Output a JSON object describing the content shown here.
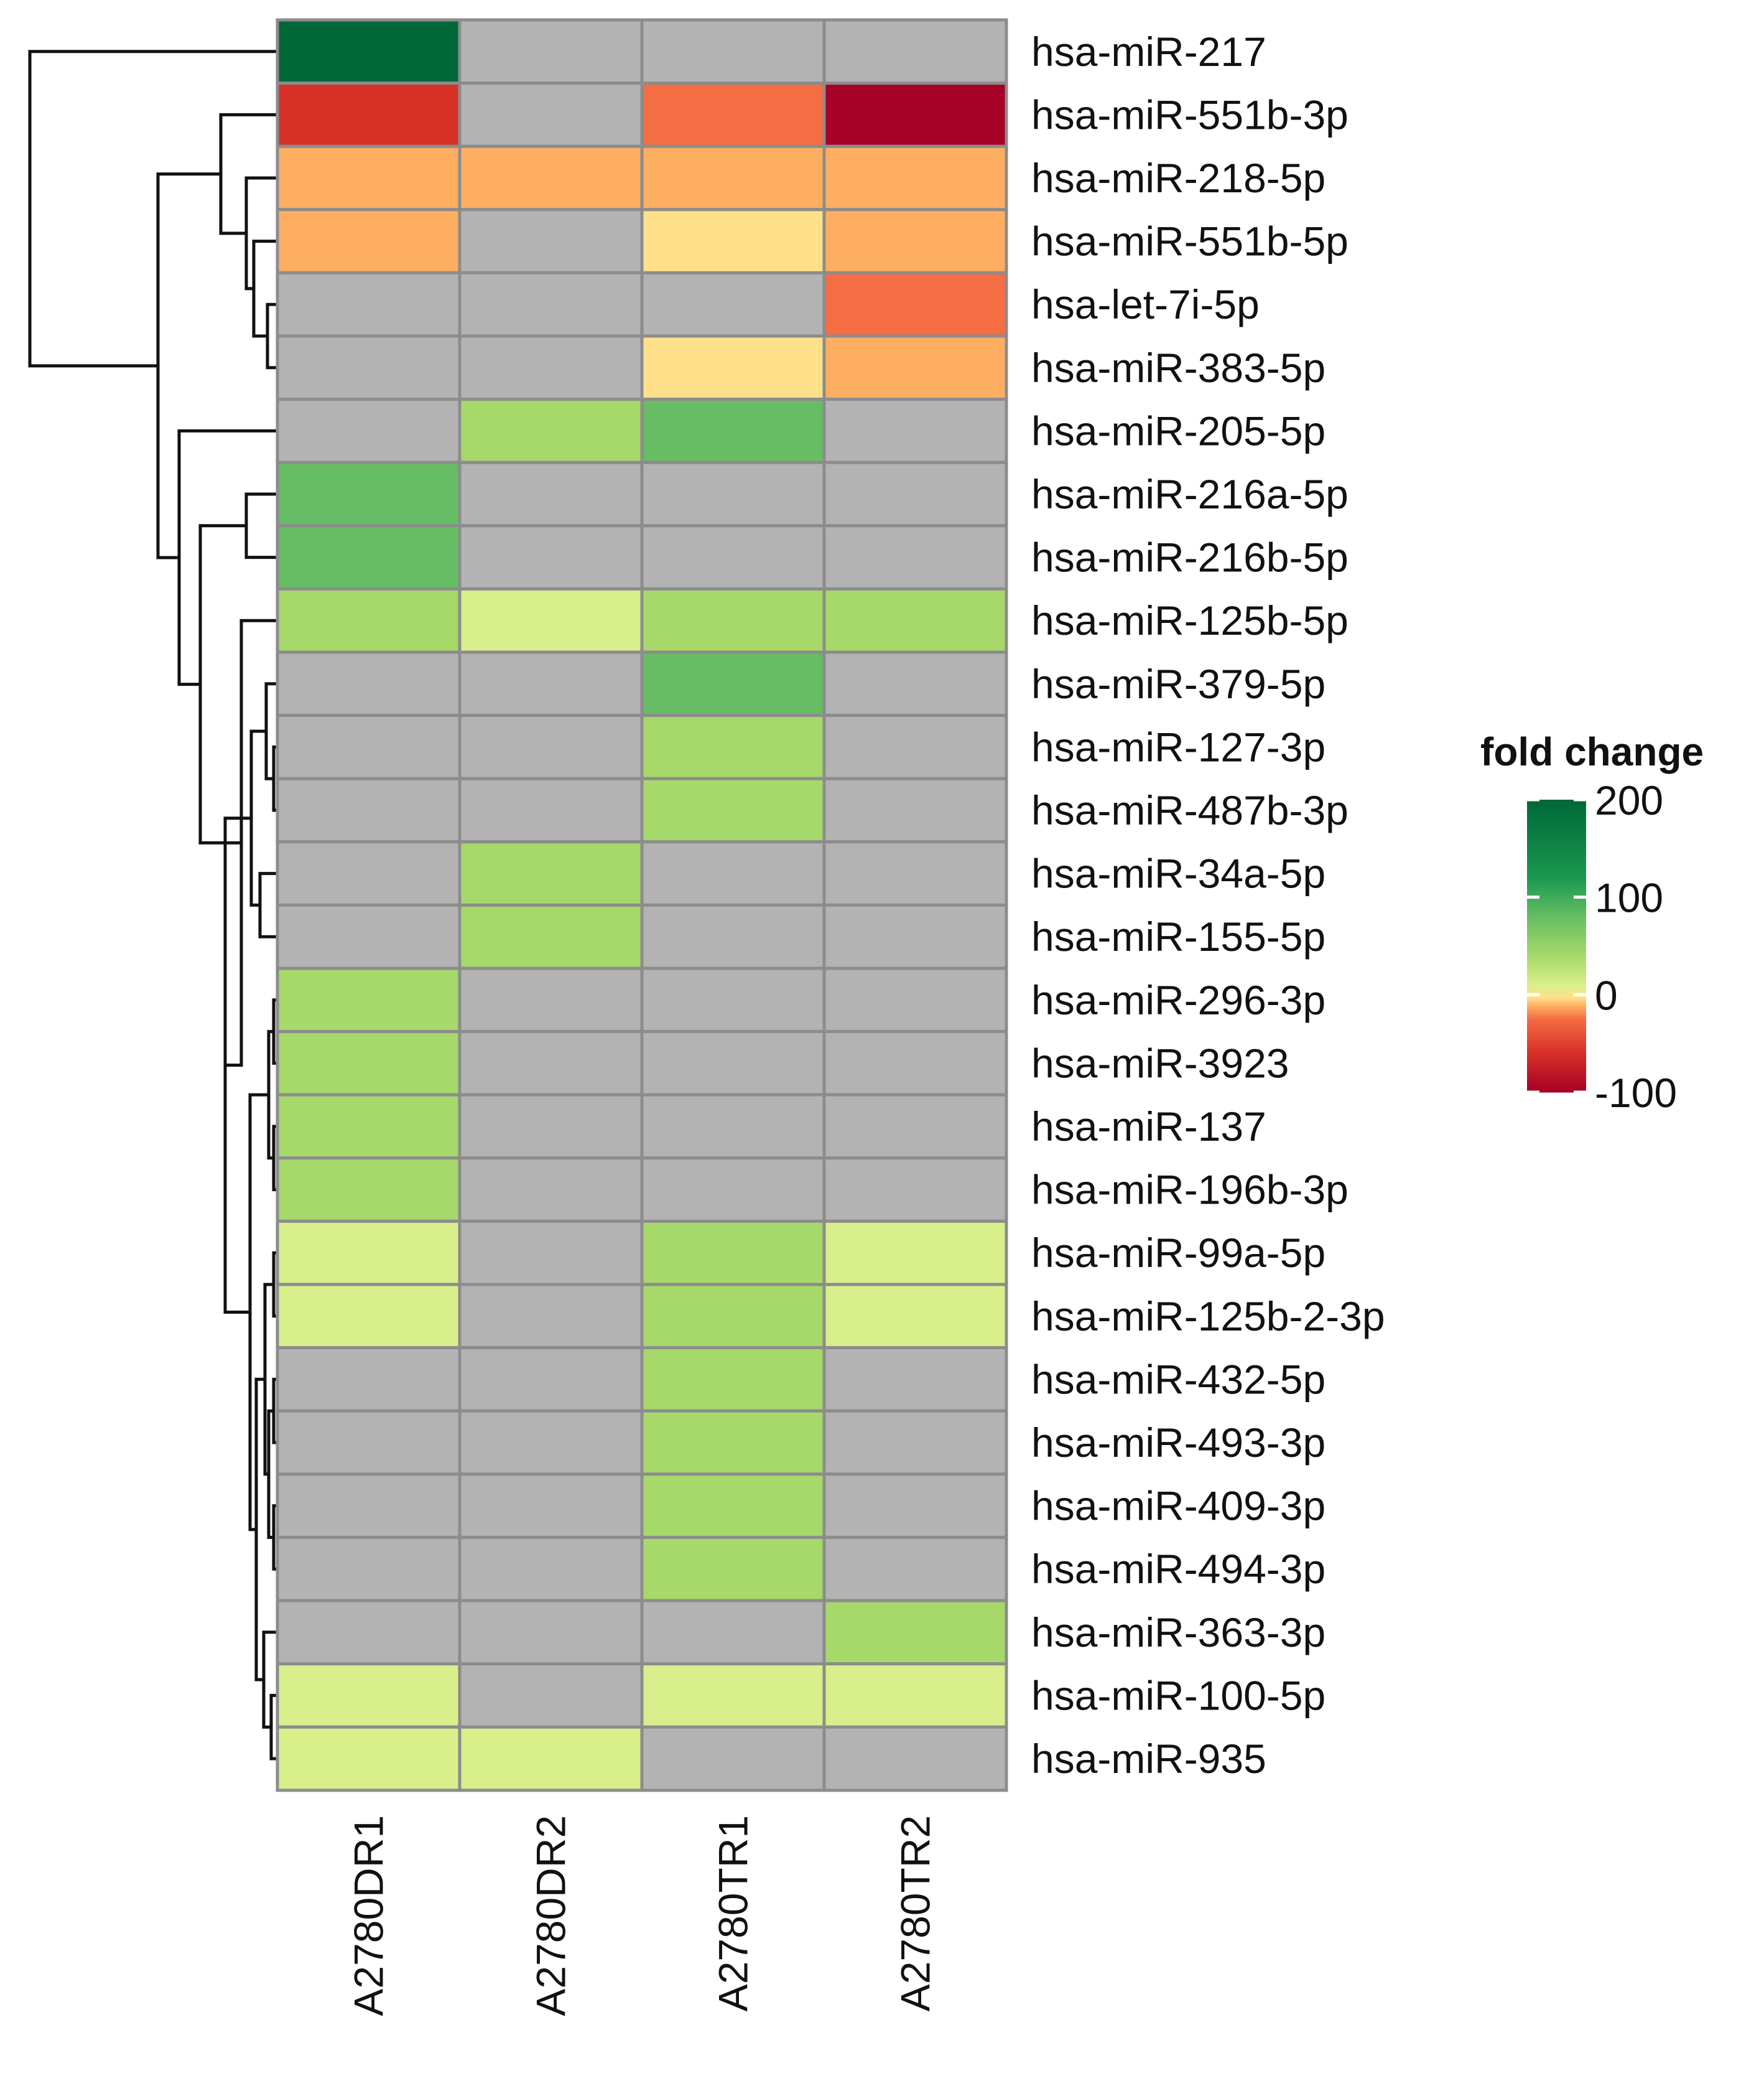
{
  "chart_data": {
    "type": "heatmap",
    "columns": [
      "A2780DR1",
      "A2780DR2",
      "A2780TR1",
      "A2780TR2"
    ],
    "rows": [
      "hsa-miR-217",
      "hsa-miR-551b-3p",
      "hsa-miR-218-5p",
      "hsa-miR-551b-5p",
      "hsa-let-7i-5p",
      "hsa-miR-383-5p",
      "hsa-miR-205-5p",
      "hsa-miR-216a-5p",
      "hsa-miR-216b-5p",
      "hsa-miR-125b-5p",
      "hsa-miR-379-5p",
      "hsa-miR-127-3p",
      "hsa-miR-487b-3p",
      "hsa-miR-34a-5p",
      "hsa-miR-155-5p",
      "hsa-miR-296-3p",
      "hsa-miR-3923",
      "hsa-miR-137",
      "hsa-miR-196b-3p",
      "hsa-miR-99a-5p",
      "hsa-miR-125b-2-3p",
      "hsa-miR-432-5p",
      "hsa-miR-493-3p",
      "hsa-miR-409-3p",
      "hsa-miR-494-3p",
      "hsa-miR-363-3p",
      "hsa-miR-100-5p",
      "hsa-miR-935"
    ],
    "values": [
      [
        200,
        null,
        null,
        null
      ],
      [
        -60,
        null,
        -25,
        -100
      ],
      [
        -12,
        -12,
        -12,
        -12
      ],
      [
        -12,
        null,
        -3,
        -12
      ],
      [
        null,
        null,
        null,
        -25
      ],
      [
        null,
        null,
        -3,
        -12
      ],
      [
        null,
        40,
        80,
        null
      ],
      [
        80,
        null,
        null,
        null
      ],
      [
        80,
        null,
        null,
        null
      ],
      [
        40,
        10,
        40,
        40
      ],
      [
        null,
        null,
        80,
        null
      ],
      [
        null,
        null,
        40,
        null
      ],
      [
        null,
        null,
        40,
        null
      ],
      [
        null,
        40,
        null,
        null
      ],
      [
        null,
        40,
        null,
        null
      ],
      [
        40,
        null,
        null,
        null
      ],
      [
        40,
        null,
        null,
        null
      ],
      [
        40,
        null,
        null,
        null
      ],
      [
        40,
        null,
        null,
        null
      ],
      [
        10,
        null,
        40,
        10
      ],
      [
        10,
        null,
        40,
        10
      ],
      [
        null,
        null,
        40,
        null
      ],
      [
        null,
        null,
        40,
        null
      ],
      [
        null,
        null,
        40,
        null
      ],
      [
        null,
        null,
        40,
        null
      ],
      [
        null,
        null,
        null,
        40
      ],
      [
        10,
        null,
        10,
        10
      ],
      [
        10,
        10,
        null,
        null
      ]
    ],
    "legend": {
      "title": "fold change",
      "ticks": [
        200,
        100,
        0,
        -100
      ],
      "range": [
        -100,
        200
      ]
    },
    "colors": {
      "na": "#b3b3b3",
      "cell_border": "#8c8c8c"
    }
  }
}
